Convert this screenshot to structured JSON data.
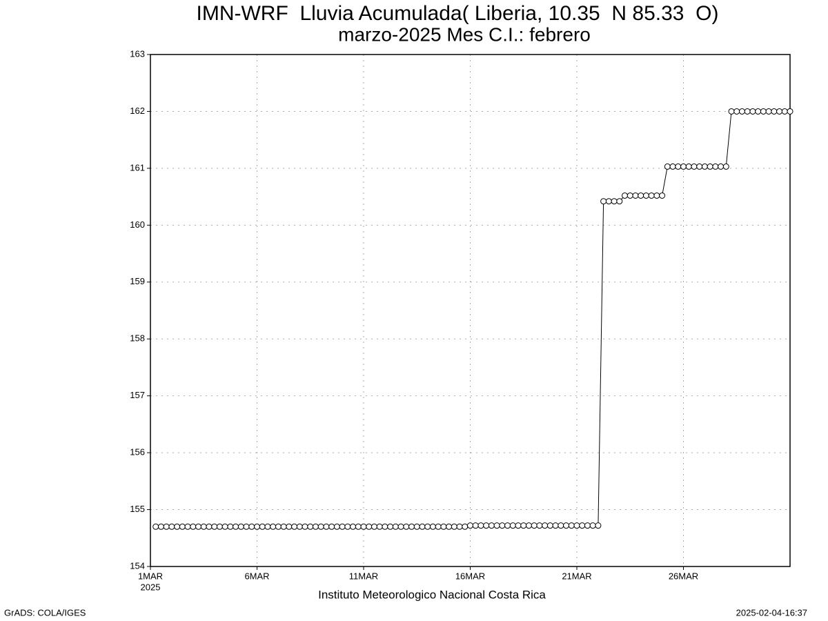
{
  "chart_data": {
    "type": "line",
    "title": "IMN-WRF  Lluvia Acumulada( Liberia, 10.35  N 85.33  O)",
    "subtitle": "marzo-2025 Mes C.I.: febrero",
    "x_label": "Instituto Meteorologico Nacional Costa Rica",
    "x_year": "2025",
    "footer_left": "GrADS: COLA/IGES",
    "footer_right": "2025-02-04-16:37",
    "grid": true,
    "xlim": [
      0,
      30
    ],
    "xticks": [
      {
        "value": 0,
        "label": "1MAR"
      },
      {
        "value": 5,
        "label": "6MAR"
      },
      {
        "value": 10,
        "label": "11MAR"
      },
      {
        "value": 15,
        "label": "16MAR"
      },
      {
        "value": 20,
        "label": "21MAR"
      },
      {
        "value": 25,
        "label": "26MAR"
      }
    ],
    "ylim": [
      154,
      163
    ],
    "yticks": [
      154,
      155,
      156,
      157,
      158,
      159,
      160,
      161,
      162,
      163
    ],
    "x": [
      0.25,
      0.5,
      0.75,
      1,
      1.25,
      1.5,
      1.75,
      2,
      2.25,
      2.5,
      2.75,
      3,
      3.25,
      3.5,
      3.75,
      4,
      4.25,
      4.5,
      4.75,
      5,
      5.25,
      5.5,
      5.75,
      6,
      6.25,
      6.5,
      6.75,
      7,
      7.25,
      7.5,
      7.75,
      8,
      8.25,
      8.5,
      8.75,
      9,
      9.25,
      9.5,
      9.75,
      10,
      10.25,
      10.5,
      10.75,
      11,
      11.25,
      11.5,
      11.75,
      12,
      12.25,
      12.5,
      12.75,
      13,
      13.25,
      13.5,
      13.75,
      14,
      14.25,
      14.5,
      14.75,
      15,
      15.25,
      15.5,
      15.75,
      16,
      16.25,
      16.5,
      16.75,
      17,
      17.25,
      17.5,
      17.75,
      18,
      18.25,
      18.5,
      18.75,
      19,
      19.25,
      19.5,
      19.75,
      20,
      20.25,
      20.5,
      20.75,
      21,
      21.25,
      21.5,
      21.75,
      22,
      22.25,
      22.5,
      22.75,
      23,
      23.25,
      23.5,
      23.75,
      24,
      24.25,
      24.5,
      24.75,
      25,
      25.25,
      25.5,
      25.75,
      26,
      26.25,
      26.5,
      26.75,
      27,
      27.25,
      27.5,
      27.75,
      28,
      28.25,
      28.5,
      28.75,
      29,
      29.25,
      29.5,
      29.75,
      30
    ],
    "series": [
      {
        "color": "#000000",
        "values": [
          154.7,
          154.7,
          154.7,
          154.7,
          154.7,
          154.7,
          154.7,
          154.7,
          154.7,
          154.7,
          154.7,
          154.7,
          154.7,
          154.7,
          154.7,
          154.7,
          154.7,
          154.7,
          154.7,
          154.7,
          154.7,
          154.7,
          154.7,
          154.7,
          154.7,
          154.7,
          154.7,
          154.7,
          154.7,
          154.7,
          154.7,
          154.7,
          154.7,
          154.7,
          154.7,
          154.7,
          154.7,
          154.7,
          154.7,
          154.7,
          154.7,
          154.7,
          154.7,
          154.7,
          154.7,
          154.7,
          154.7,
          154.7,
          154.7,
          154.7,
          154.7,
          154.7,
          154.7,
          154.7,
          154.7,
          154.7,
          154.7,
          154.7,
          154.7,
          154.72,
          154.72,
          154.72,
          154.72,
          154.72,
          154.72,
          154.72,
          154.72,
          154.72,
          154.72,
          154.72,
          154.72,
          154.72,
          154.72,
          154.72,
          154.72,
          154.72,
          154.72,
          154.72,
          154.72,
          154.72,
          154.72,
          154.72,
          154.72,
          154.72,
          160.42,
          160.42,
          160.42,
          160.42,
          160.52,
          160.52,
          160.52,
          160.52,
          160.52,
          160.52,
          160.52,
          160.52,
          161.03,
          161.03,
          161.03,
          161.03,
          161.03,
          161.03,
          161.03,
          161.03,
          161.03,
          161.03,
          161.03,
          161.03,
          162,
          162,
          162,
          162,
          162,
          162,
          162,
          162,
          162,
          162,
          162,
          162
        ]
      }
    ]
  }
}
